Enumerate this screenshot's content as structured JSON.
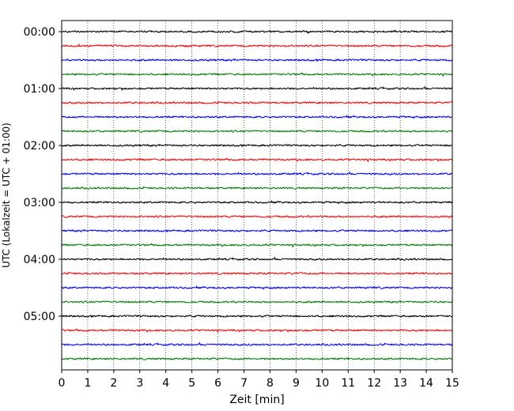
{
  "chart_data": {
    "type": "line",
    "title": "",
    "xlabel": "Zeit  [min]",
    "ylabel": "UTC (Lokalzeit = UTC + 01:00)",
    "xlim": [
      0,
      15
    ],
    "x_ticks": [
      0,
      1,
      2,
      3,
      4,
      5,
      6,
      7,
      8,
      9,
      10,
      11,
      12,
      13,
      14,
      15
    ],
    "x_tick_labels": [
      "0",
      "1",
      "2",
      "3",
      "4",
      "5",
      "6",
      "7",
      "8",
      "9",
      "10",
      "11",
      "12",
      "13",
      "14",
      "15"
    ],
    "y_tick_labels": [
      "00:00",
      "01:00",
      "02:00",
      "03:00",
      "04:00",
      "05:00"
    ],
    "trace_interval_minutes": 15,
    "trace_count": 24,
    "trace_colors": [
      "#000000",
      "#ff0000",
      "#0000ff",
      "#008000"
    ],
    "vertical_grid": "dotted",
    "series": [
      {
        "values": [
          0.3,
          0.3,
          0.3,
          0.3,
          0.3,
          0.3,
          0.3,
          0.3,
          0.3,
          0.3,
          0.3,
          0.3,
          0.3,
          0.3,
          0.3,
          0.3
        ]
      },
      {
        "values": [
          0.3,
          0.3,
          0.3,
          0.3,
          0.3,
          0.3,
          0.3,
          0.3,
          0.3,
          0.3,
          0.3,
          0.3,
          0.3,
          0.3,
          0.3,
          0.3
        ]
      },
      {
        "values": [
          0.3,
          0.3,
          0.3,
          0.3,
          0.3,
          0.3,
          0.3,
          0.3,
          0.3,
          0.3,
          0.3,
          0.3,
          0.3,
          0.3,
          0.3,
          0.3
        ]
      },
      {
        "values": [
          0.3,
          0.3,
          0.3,
          0.3,
          0.3,
          0.3,
          0.3,
          0.3,
          0.3,
          0.3,
          0.3,
          0.3,
          0.3,
          0.3,
          0.3,
          0.3
        ]
      },
      {
        "values": [
          0.3,
          0.3,
          0.3,
          0.3,
          0.3,
          0.3,
          0.3,
          0.3,
          0.3,
          0.3,
          0.3,
          0.3,
          0.3,
          0.3,
          0.3,
          0.3
        ]
      },
      {
        "values": [
          0.3,
          0.3,
          0.3,
          0.3,
          0.3,
          0.3,
          0.3,
          0.3,
          0.3,
          0.3,
          0.3,
          0.3,
          0.3,
          0.3,
          0.3,
          0.3
        ]
      },
      {
        "values": [
          0.3,
          0.3,
          0.3,
          0.3,
          0.3,
          0.3,
          0.3,
          0.3,
          0.3,
          0.3,
          0.3,
          0.3,
          0.3,
          0.3,
          0.3,
          0.3
        ]
      },
      {
        "values": [
          0.3,
          0.3,
          0.3,
          0.3,
          0.3,
          0.3,
          0.3,
          0.3,
          0.3,
          0.3,
          0.3,
          0.3,
          0.3,
          0.3,
          0.3,
          0.3
        ]
      },
      {
        "values": [
          0.3,
          0.3,
          0.3,
          0.3,
          0.3,
          0.3,
          0.3,
          0.3,
          0.3,
          0.3,
          0.3,
          0.3,
          0.3,
          0.3,
          0.3,
          0.3
        ]
      },
      {
        "values": [
          0.3,
          0.3,
          0.3,
          0.3,
          0.3,
          0.3,
          0.3,
          0.3,
          0.3,
          0.3,
          0.3,
          0.3,
          0.3,
          0.3,
          0.3,
          0.3
        ]
      },
      {
        "values": [
          0.3,
          0.3,
          0.3,
          0.3,
          0.3,
          0.3,
          0.3,
          0.3,
          0.3,
          0.3,
          0.3,
          0.3,
          0.3,
          0.3,
          0.3,
          0.3
        ]
      },
      {
        "values": [
          0.3,
          0.3,
          0.3,
          0.3,
          0.3,
          0.3,
          0.3,
          0.3,
          0.3,
          0.3,
          0.3,
          0.3,
          0.3,
          0.3,
          0.3,
          0.3
        ]
      },
      {
        "values": [
          0.3,
          0.3,
          0.3,
          0.3,
          0.3,
          0.3,
          0.3,
          0.3,
          0.3,
          0.3,
          0.3,
          0.3,
          0.3,
          0.3,
          0.3,
          0.3
        ]
      },
      {
        "values": [
          0.3,
          0.3,
          0.3,
          0.3,
          0.3,
          0.3,
          0.3,
          0.3,
          0.3,
          0.3,
          0.3,
          0.3,
          0.3,
          0.3,
          0.3,
          0.3
        ]
      },
      {
        "values": [
          0.3,
          0.3,
          0.3,
          0.3,
          0.3,
          0.3,
          0.3,
          0.3,
          0.3,
          0.3,
          0.3,
          0.3,
          0.3,
          0.3,
          0.3,
          0.3
        ]
      },
      {
        "values": [
          0.3,
          0.3,
          0.3,
          0.3,
          0.3,
          0.3,
          0.3,
          0.3,
          0.3,
          0.3,
          0.3,
          0.3,
          0.3,
          0.3,
          0.3,
          0.3
        ]
      },
      {
        "values": [
          0.3,
          0.3,
          0.3,
          0.3,
          0.3,
          0.3,
          0.3,
          0.3,
          0.3,
          0.3,
          0.3,
          0.3,
          0.3,
          0.3,
          0.3,
          0.3
        ]
      },
      {
        "values": [
          0.3,
          0.3,
          0.3,
          0.3,
          0.3,
          0.3,
          0.3,
          0.3,
          0.3,
          0.3,
          0.3,
          0.3,
          0.3,
          0.3,
          0.3,
          0.3
        ]
      },
      {
        "values": [
          0.3,
          0.3,
          0.3,
          0.3,
          0.3,
          0.3,
          0.3,
          0.3,
          0.3,
          0.3,
          0.3,
          0.3,
          0.3,
          0.3,
          0.3,
          0.3
        ]
      },
      {
        "values": [
          0.3,
          0.3,
          0.3,
          0.3,
          0.3,
          0.3,
          0.3,
          0.3,
          0.3,
          0.3,
          0.3,
          0.3,
          0.3,
          0.3,
          0.3,
          0.3
        ]
      },
      {
        "values": [
          0.3,
          0.3,
          0.3,
          0.3,
          0.3,
          0.3,
          0.3,
          0.3,
          0.3,
          0.3,
          0.3,
          0.3,
          0.3,
          0.3,
          0.3,
          0.3
        ]
      },
      {
        "values": [
          0.3,
          0.3,
          0.3,
          0.3,
          0.3,
          0.3,
          0.3,
          0.3,
          0.3,
          0.3,
          0.3,
          0.3,
          0.3,
          0.3,
          0.3,
          0.3
        ]
      },
      {
        "values": [
          0.3,
          0.3,
          0.3,
          0.3,
          0.3,
          0.3,
          0.3,
          0.3,
          0.3,
          0.3,
          0.3,
          0.3,
          0.3,
          0.3,
          0.3,
          0.3
        ]
      },
      {
        "values": [
          0.3,
          0.3,
          0.3,
          0.3,
          0.3,
          0.3,
          0.3,
          0.3,
          0.3,
          0.3,
          0.3,
          0.3,
          0.3,
          0.3,
          0.3,
          0.3
        ]
      }
    ]
  }
}
